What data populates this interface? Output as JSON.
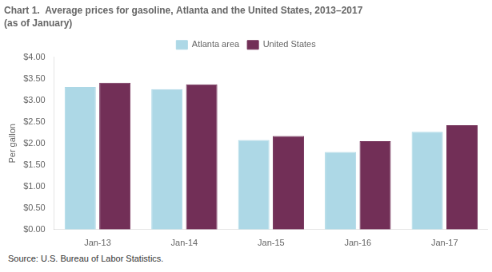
{
  "chart_data": {
    "type": "bar",
    "title": "Chart 1.  Average prices for gasoline, Atlanta and the United States, 2013–2017",
    "subtitle": "(as of January)",
    "ylabel": "Per gallon",
    "annotations": [
      "Source:  U.S. Bureau of Labor Statistics."
    ],
    "categories": [
      "Jan-13",
      "Jan-14",
      "Jan-15",
      "Jan-16",
      "Jan-17"
    ],
    "series": [
      {
        "name": "Atlanta area",
        "color": "#ADD8E6",
        "values": [
          3.31,
          3.26,
          2.08,
          1.8,
          2.27
        ]
      },
      {
        "name": "United States",
        "color": "#722F57",
        "values": [
          3.41,
          3.37,
          2.17,
          2.05,
          2.42
        ]
      }
    ],
    "ylim": [
      0.0,
      4.0
    ],
    "yticks": [
      {
        "value": 0.0,
        "label": "$0.00"
      },
      {
        "value": 0.5,
        "label": "$0.50"
      },
      {
        "value": 1.0,
        "label": "$1.00"
      },
      {
        "value": 1.5,
        "label": "$1.50"
      },
      {
        "value": 2.0,
        "label": "$2.00"
      },
      {
        "value": 2.5,
        "label": "$2.50"
      },
      {
        "value": 3.0,
        "label": "$3.00"
      },
      {
        "value": 3.5,
        "label": "$3.50"
      },
      {
        "value": 4.0,
        "label": "$4.00"
      }
    ],
    "grid": false,
    "legend": "top"
  }
}
